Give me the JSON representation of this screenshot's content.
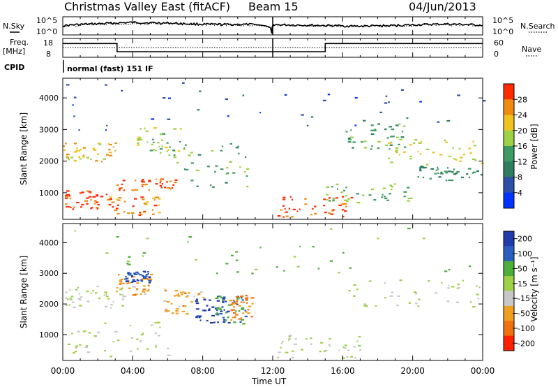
{
  "header": {
    "title": "Christmas Valley East (fitACF)",
    "beam": "Beam 15",
    "date": "04/Jun/2013"
  },
  "summary": {
    "nsky_label": "N.Sky",
    "nsky_ticks": [
      "10^5",
      "10^0"
    ],
    "nsearch_label": "N.Search",
    "freq_label": "Freq.",
    "freq_unit": "[MHz]",
    "freq_ticks": [
      "18",
      "8"
    ],
    "nave_ticks": [
      "60",
      "0"
    ],
    "nave_label": "Nave",
    "cpid_label": "CPID",
    "cpid_value": "normal (fast) 151 IF"
  },
  "chart_data": [
    {
      "type": "line",
      "name": "N.Sky / N.Search",
      "x_unit": "hours UT",
      "y_scale": "log",
      "ylim": [
        1,
        100000
      ],
      "x": [
        0,
        1,
        2,
        3,
        4,
        5,
        6,
        7,
        8,
        9,
        10,
        11,
        11.95,
        12.05,
        13,
        14,
        15,
        16,
        17,
        18,
        19,
        20,
        21,
        22,
        23,
        24
      ],
      "nsky": [
        300,
        900,
        1500,
        2500,
        4000,
        3000,
        2500,
        1500,
        1000,
        900,
        900,
        800,
        1,
        700,
        600,
        500,
        400,
        300,
        250,
        300,
        400,
        600,
        900,
        1200,
        800,
        500
      ],
      "nsearch": [
        200,
        400,
        800,
        1200,
        1500,
        1300,
        1100,
        900,
        700,
        600,
        600,
        500,
        1,
        500,
        400,
        350,
        300,
        250,
        220,
        260,
        300,
        400,
        500,
        600,
        500,
        400
      ]
    },
    {
      "type": "line",
      "name": "Freq / Nave",
      "x_unit": "hours UT",
      "freq_ylim": [
        8,
        18
      ],
      "nave_ylim": [
        0,
        60
      ],
      "freq_steps": [
        [
          0,
          15.5
        ],
        [
          3.1,
          15.5
        ],
        [
          3.1,
          10.8
        ],
        [
          11.95,
          10.8
        ],
        [
          12.05,
          10.8
        ],
        [
          15.0,
          10.8
        ],
        [
          15.0,
          15.5
        ],
        [
          24,
          15.5
        ]
      ],
      "nave_steps": [
        [
          0,
          38
        ],
        [
          3.1,
          38
        ],
        [
          3.1,
          26
        ],
        [
          15.0,
          26
        ],
        [
          15.0,
          38
        ],
        [
          24,
          38
        ]
      ],
      "nave_dotted_level": 30
    },
    {
      "type": "heatmap",
      "name": "Power",
      "xlabel": "Time UT",
      "ylabel": "Slant Range [km]",
      "xlim": [
        0,
        24
      ],
      "ylim": [
        180,
        4600
      ],
      "x_ticks": [
        "00:00",
        "04:00",
        "08:00",
        "12:00",
        "16:00",
        "20:00",
        "00:00"
      ],
      "y_ticks": [
        1000,
        2000,
        3000,
        4000
      ],
      "colorbar_label": "Power [dB]",
      "colorbar_ticks": [
        "4",
        "8",
        "12",
        "16",
        "20",
        "24",
        "28"
      ],
      "colorbar_range": [
        0,
        32
      ],
      "colorbar_colors": [
        "#0033ff",
        "#2c4fa8",
        "#2f7d5e",
        "#3c9a62",
        "#9fd046",
        "#f0c21f",
        "#f08a10",
        "#ff2a00"
      ],
      "scatter_bands": [
        {
          "t0": 0,
          "t1": 2.5,
          "r0": 500,
          "r1": 1100,
          "power": 30
        },
        {
          "t0": 2.5,
          "t1": 5.5,
          "r0": 300,
          "r1": 900,
          "power": 26
        },
        {
          "t0": 3,
          "t1": 6.5,
          "r0": 1100,
          "r1": 1500,
          "power": 28
        },
        {
          "t0": 0,
          "t1": 3,
          "r0": 2000,
          "r1": 2600,
          "power": 22
        },
        {
          "t0": 4,
          "t1": 7.5,
          "r0": 2200,
          "r1": 3100,
          "power": 18
        },
        {
          "t0": 6,
          "t1": 10.5,
          "r0": 1200,
          "r1": 2600,
          "power": 14
        },
        {
          "t0": 12.2,
          "t1": 17,
          "r0": 250,
          "r1": 900,
          "power": 30
        },
        {
          "t0": 15,
          "t1": 20,
          "r0": 700,
          "r1": 1300,
          "power": 16
        },
        {
          "t0": 16,
          "t1": 19.5,
          "r0": 2400,
          "r1": 3200,
          "power": 14
        },
        {
          "t0": 18.5,
          "t1": 24,
          "r0": 1900,
          "r1": 2700,
          "power": 20
        },
        {
          "t0": 20,
          "t1": 24,
          "r0": 1400,
          "r1": 1900,
          "power": 12
        },
        {
          "t0": 0,
          "t1": 24,
          "r0": 3000,
          "r1": 4500,
          "power": 6
        }
      ]
    },
    {
      "type": "heatmap",
      "name": "Velocity",
      "xlabel": "Time UT",
      "ylabel": "Slant Range [km]",
      "xlim": [
        0,
        24
      ],
      "ylim": [
        180,
        4600
      ],
      "x_ticks": [
        "00:00",
        "04:00",
        "08:00",
        "12:00",
        "16:00",
        "20:00",
        "00:00"
      ],
      "y_ticks": [
        1000,
        2000,
        3000,
        4000
      ],
      "colorbar_label": "Velocity [m s⁻¹]",
      "colorbar_ticks": [
        "200",
        "100",
        "50",
        "15",
        "-15",
        "-50",
        "-100",
        "-200"
      ],
      "colorbar_colors": [
        "#1f3caa",
        "#2a5fbf",
        "#4caf3a",
        "#9fd046",
        "#c8c8c8",
        "#f0a020",
        "#f07010",
        "#ff2000"
      ],
      "scatter_bands": [
        {
          "t0": 0,
          "t1": 6.5,
          "r0": 300,
          "r1": 1500,
          "velocity": 0
        },
        {
          "t0": 0,
          "t1": 3.5,
          "r0": 1900,
          "r1": 2600,
          "velocity": 0
        },
        {
          "t0": 3,
          "t1": 5,
          "r0": 2300,
          "r1": 3000,
          "velocity": -60
        },
        {
          "t0": 3.5,
          "t1": 5,
          "r0": 2700,
          "r1": 3100,
          "velocity": 150
        },
        {
          "t0": 5.5,
          "t1": 8,
          "r0": 1700,
          "r1": 2500,
          "velocity": -50
        },
        {
          "t0": 7.5,
          "t1": 9.5,
          "r0": 1400,
          "r1": 2200,
          "velocity": 180
        },
        {
          "t0": 8.5,
          "t1": 10.5,
          "r0": 1300,
          "r1": 2300,
          "velocity": 70
        },
        {
          "t0": 9.5,
          "t1": 10.8,
          "r0": 1500,
          "r1": 2300,
          "velocity": -90
        },
        {
          "t0": 12.2,
          "t1": 17,
          "r0": 250,
          "r1": 1000,
          "velocity": 0
        },
        {
          "t0": 16,
          "t1": 24,
          "r0": 1900,
          "r1": 2800,
          "velocity": 0
        },
        {
          "t0": 0,
          "t1": 24,
          "r0": 3000,
          "r1": 4500,
          "velocity": 40
        }
      ]
    }
  ]
}
